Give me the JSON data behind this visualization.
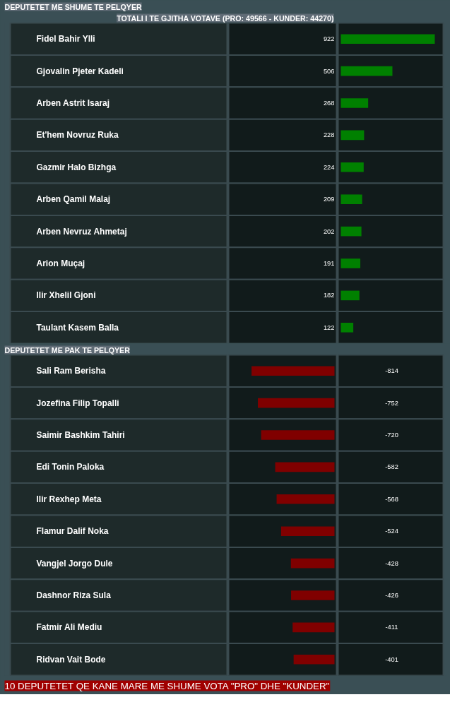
{
  "chart_data": [
    {
      "type": "bar",
      "orientation": "horizontal",
      "title": "TOTALI I TE GJITHA VOTAVE (PRO: 49566 - KUNDER: 44270)",
      "subtitle": "DEPUTETET ME SHUME TE PELQYER",
      "categories": [
        "Fidel Bahir Ylli",
        "Gjovalin Pjeter Kadeli",
        "Arben Astrit Isaraj",
        "Et'hem Novruz Ruka",
        "Gazmir Halo Bizhga",
        "Arben Qamil Malaj",
        "Arben Nevruz Ahmetaj",
        "Arion Muçaj",
        "Ilir Xhelil Gjoni",
        "Taulant Kasem Balla"
      ],
      "values": [
        922,
        506,
        268,
        228,
        224,
        209,
        202,
        191,
        182,
        122
      ],
      "color": "#008000",
      "data_labels": true
    },
    {
      "type": "bar",
      "orientation": "horizontal",
      "title": "DEPUTETET ME PAK TE PELQYER",
      "categories": [
        "Sali Ram Berisha",
        "Jozefina Filip Topalli",
        "Saimir Bashkim Tahiri",
        "Edi Tonin Paloka",
        "Ilir Rexhep Meta",
        "Flamur Dalif Noka",
        "Vangjel Jorgo Dule",
        "Dashnor Riza Sula",
        "Fatmir Ali Mediu",
        "Ridvan Vait Bode"
      ],
      "values": [
        -814,
        -752,
        -720,
        -582,
        -568,
        -524,
        -428,
        -426,
        -411,
        -401
      ],
      "color": "#800000",
      "data_labels": true,
      "annotations": [
        "10 DEPUTETET QE KANE MARE ME SHUME VOTA \"PRO\" DHE \"KUNDER\""
      ]
    }
  ]
}
